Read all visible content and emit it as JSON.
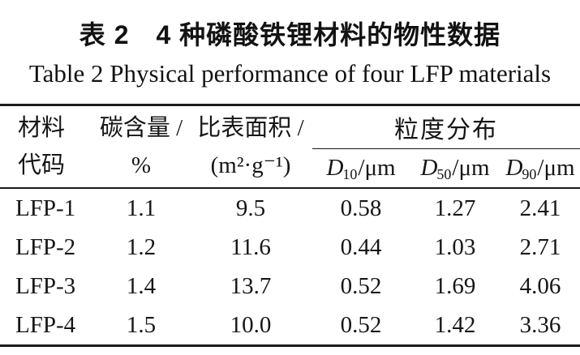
{
  "page": {
    "background": "#ffffff",
    "text_color": "#161616",
    "rule_color": "#1a1a1a"
  },
  "titles": {
    "zh": "表 2　4 种磷酸铁锂材料的物性数据",
    "en": "Table 2  Physical performance of four LFP materials"
  },
  "table": {
    "header": {
      "col_material": [
        "材料",
        "代码"
      ],
      "col_carbon": [
        "碳含量 /",
        "%"
      ],
      "col_ssa": [
        "比表面积 /",
        "(m²·g⁻¹)"
      ],
      "group_psd": "粒度分布",
      "psd_cols": [
        {
          "symbol": "D",
          "sub": "10",
          "unit": "/μm"
        },
        {
          "symbol": "D",
          "sub": "50",
          "unit": "/μm"
        },
        {
          "symbol": "D",
          "sub": "90",
          "unit": "/μm"
        }
      ]
    },
    "rows": [
      {
        "code": "LFP-1",
        "carbon": "1.1",
        "ssa": "9.5",
        "d10": "0.58",
        "d50": "1.27",
        "d90": "2.41"
      },
      {
        "code": "LFP-2",
        "carbon": "1.2",
        "ssa": "11.6",
        "d10": "0.44",
        "d50": "1.03",
        "d90": "2.71"
      },
      {
        "code": "LFP-3",
        "carbon": "1.4",
        "ssa": "13.7",
        "d10": "0.52",
        "d50": "1.69",
        "d90": "4.06"
      },
      {
        "code": "LFP-4",
        "carbon": "1.5",
        "ssa": "10.0",
        "d10": "0.52",
        "d50": "1.42",
        "d90": "3.36"
      }
    ]
  },
  "chart_data": {
    "type": "table",
    "title": "表 2 4 种磷酸铁锂材料的物性数据 (Table 2 Physical performance of four LFP materials)",
    "columns": [
      "材料代码",
      "碳含量/%",
      "比表面积/(m²·g⁻¹)",
      "D10/μm",
      "D50/μm",
      "D90/μm"
    ],
    "rows": [
      [
        "LFP-1",
        1.1,
        9.5,
        0.58,
        1.27,
        2.41
      ],
      [
        "LFP-2",
        1.2,
        11.6,
        0.44,
        1.03,
        2.71
      ],
      [
        "LFP-3",
        1.4,
        13.7,
        0.52,
        1.69,
        4.06
      ],
      [
        "LFP-4",
        1.5,
        10.0,
        0.52,
        1.42,
        3.36
      ]
    ]
  }
}
